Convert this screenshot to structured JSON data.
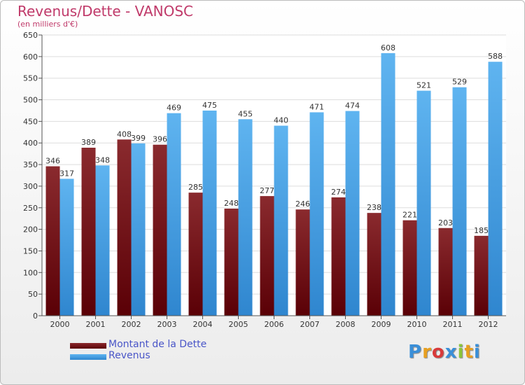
{
  "title": "Revenus/Dette - VANOSC",
  "subtitle": "(en milliers d'€)",
  "colors": {
    "debt": "#7a0f12",
    "revenue": "#49a6e8"
  },
  "chart_data": {
    "type": "bar",
    "categories": [
      "2000",
      "2001",
      "2002",
      "2003",
      "2004",
      "2005",
      "2006",
      "2007",
      "2008",
      "2009",
      "2010",
      "2011",
      "2012"
    ],
    "series": [
      {
        "name": "Montant de la Dette",
        "values": [
          346,
          389,
          408,
          396,
          285,
          248,
          277,
          246,
          274,
          238,
          221,
          203,
          185
        ]
      },
      {
        "name": "Revenus",
        "values": [
          317,
          348,
          399,
          469,
          475,
          455,
          440,
          471,
          474,
          608,
          521,
          529,
          588
        ]
      }
    ],
    "ylim": [
      0,
      650
    ],
    "yticks": [
      0,
      50,
      100,
      150,
      200,
      250,
      300,
      350,
      400,
      450,
      500,
      550,
      600,
      650
    ],
    "grid": true,
    "legend_position": "bottom-left"
  },
  "logo": {
    "letters": [
      "P",
      "r",
      "o",
      "x",
      "i",
      "t",
      "i"
    ],
    "colors": [
      "#3a8fd8",
      "#e8a020",
      "#d83a3a",
      "#3a8fd8",
      "#8ac43a",
      "#e8a020",
      "#3a8fd8"
    ]
  }
}
